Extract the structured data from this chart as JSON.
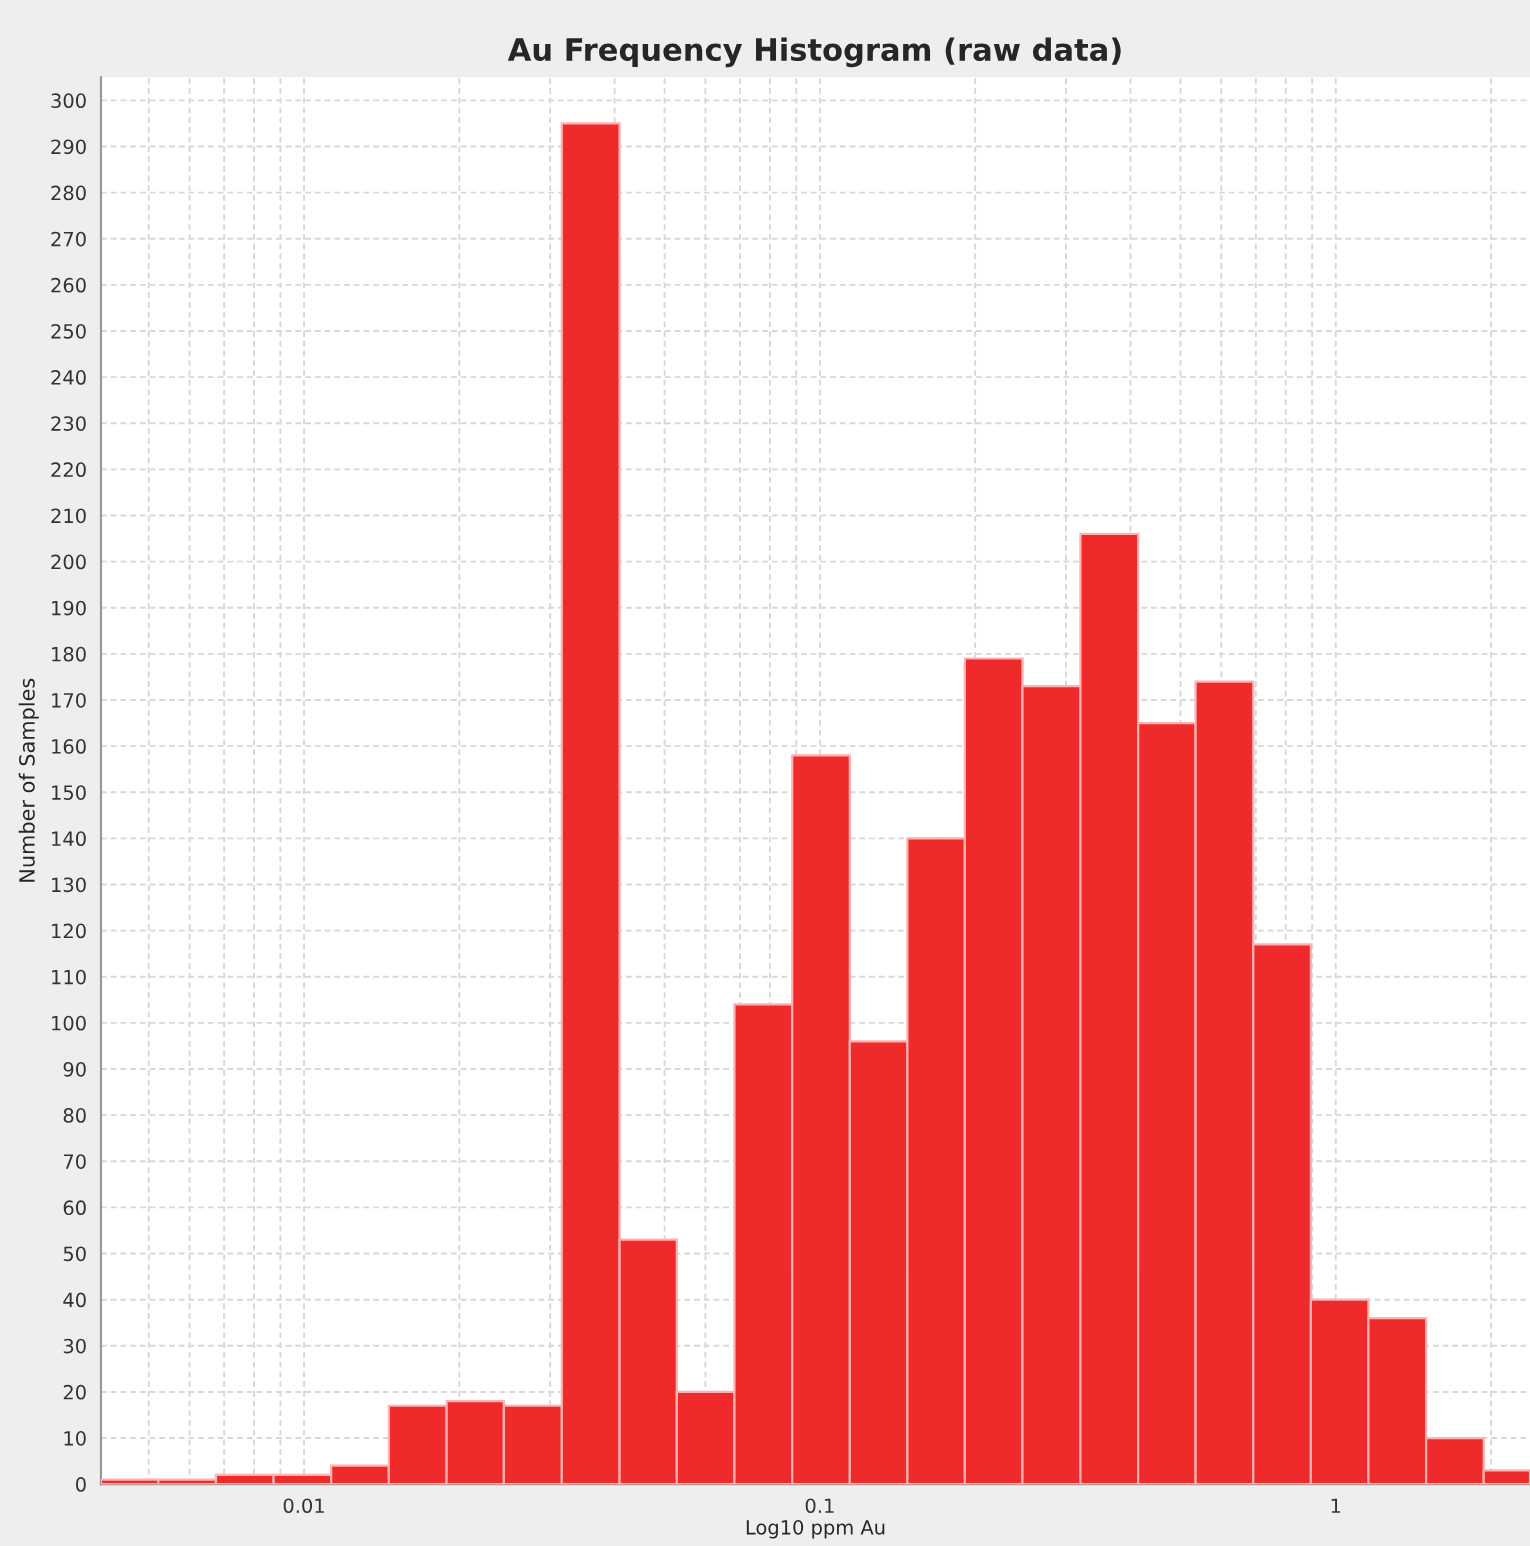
{
  "chart_data": {
    "type": "histogram",
    "title": "Au Frequency Histogram (raw data)",
    "xlabel": "Log10 ppm Au",
    "ylabel": "Number of Samples",
    "bins": [
      0.00404,
      0.00522,
      0.00675,
      0.00873,
      0.01129,
      0.0146,
      0.0189,
      0.0244,
      0.0316,
      0.0409,
      0.0528,
      0.0683,
      0.0884,
      0.1143,
      0.1478,
      0.191,
      0.247,
      0.32,
      0.414,
      0.535,
      0.692,
      0.895,
      1.157,
      1.497,
      1.936,
      2.38
    ],
    "values": [
      1,
      1,
      2,
      2,
      4,
      17,
      18,
      17,
      295,
      53,
      20,
      104,
      158,
      96,
      140,
      179,
      173,
      206,
      165,
      174,
      117,
      40,
      36,
      10,
      3
    ],
    "color": "#ee2a2a",
    "log": "x",
    "grid": true,
    "xlim": [
      0.00404,
      2.38
    ],
    "xticks": [
      {
        "value": 0.005,
        "label": null
      },
      {
        "value": 0.006,
        "label": null
      },
      {
        "value": 0.007,
        "label": null
      },
      {
        "value": 0.008,
        "label": null
      },
      {
        "value": 0.009,
        "label": null
      },
      {
        "value": 0.01,
        "label": "0.01"
      },
      {
        "value": 0.02,
        "label": null
      },
      {
        "value": 0.03,
        "label": null
      },
      {
        "value": 0.04,
        "label": null
      },
      {
        "value": 0.05,
        "label": null
      },
      {
        "value": 0.06,
        "label": null
      },
      {
        "value": 0.07,
        "label": null
      },
      {
        "value": 0.08,
        "label": null
      },
      {
        "value": 0.09,
        "label": null
      },
      {
        "value": 0.1,
        "label": "0.1"
      },
      {
        "value": 0.2,
        "label": null
      },
      {
        "value": 0.3,
        "label": null
      },
      {
        "value": 0.4,
        "label": null
      },
      {
        "value": 0.5,
        "label": null
      },
      {
        "value": 0.6,
        "label": null
      },
      {
        "value": 0.7,
        "label": null
      },
      {
        "value": 0.8,
        "label": null
      },
      {
        "value": 0.9,
        "label": null
      },
      1,
      {
        "value": 2,
        "label": null
      }
    ],
    "ylim": [
      0,
      305
    ],
    "yticks": [
      0,
      10,
      20,
      30,
      40,
      50,
      60,
      70,
      80,
      90,
      100,
      110,
      120,
      130,
      140,
      150,
      160,
      170,
      180,
      190,
      200,
      210,
      220,
      230,
      240,
      250,
      260,
      270,
      280,
      290,
      300
    ]
  }
}
